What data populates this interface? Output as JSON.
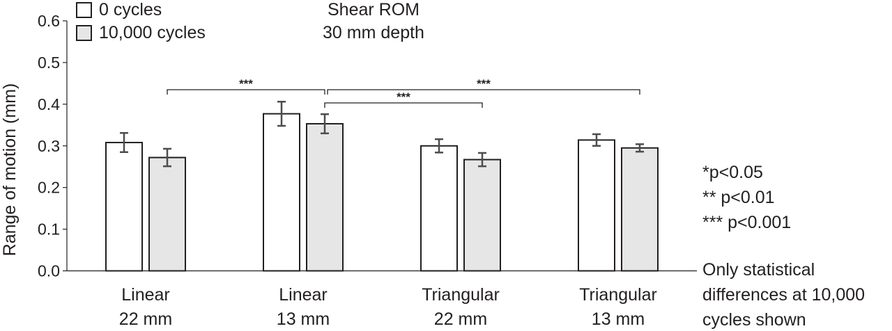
{
  "chart_data": {
    "type": "bar",
    "title": "Shear ROM",
    "subtitle": "30 mm depth",
    "ylabel": "Range of motion (mm)",
    "xlabel": "",
    "ylim": [
      0,
      0.6
    ],
    "yticks": [
      "0.0",
      "0.1",
      "0.2",
      "0.3",
      "0.4",
      "0.5",
      "0.6"
    ],
    "categories": [
      [
        "Linear",
        "22 mm"
      ],
      [
        "Linear",
        "13 mm"
      ],
      [
        "Triangular",
        "22 mm"
      ],
      [
        "Triangular",
        "13 mm"
      ]
    ],
    "series": [
      {
        "name": "0 cycles",
        "color": "#ffffff",
        "values": [
          0.308,
          0.377,
          0.3,
          0.314
        ],
        "errors": [
          0.023,
          0.029,
          0.016,
          0.014
        ]
      },
      {
        "name": "10,000 cycles",
        "color": "#e6e6e7",
        "values": [
          0.272,
          0.353,
          0.267,
          0.295
        ],
        "errors": [
          0.021,
          0.023,
          0.016,
          0.009
        ]
      }
    ],
    "significance": [
      {
        "from": 0,
        "to": 1,
        "label": "***"
      },
      {
        "from": 1,
        "to": 2,
        "label": "***"
      },
      {
        "from": 1,
        "to": 3,
        "label": "***"
      }
    ],
    "significance_key": [
      "*p<0.05",
      "** p<0.01",
      "*** p<0.001"
    ],
    "note": [
      "Only statistical",
      "differences at 10,000",
      "cycles shown"
    ],
    "legend_position": "top-left",
    "grid": false
  }
}
